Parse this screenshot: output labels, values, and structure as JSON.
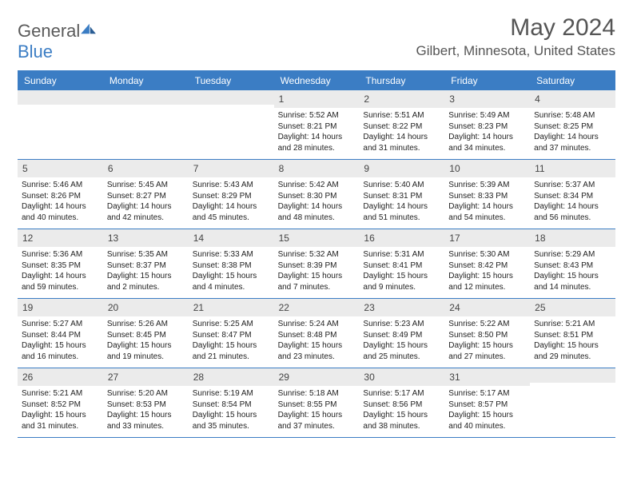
{
  "brand": {
    "word1": "General",
    "word2": "Blue"
  },
  "title": {
    "month": "May 2024",
    "location": "Gilbert, Minnesota, United States"
  },
  "colors": {
    "header_bg": "#3b7dc4",
    "daynum_bg": "#ebebeb",
    "text_main": "#222222",
    "text_muted": "#555555",
    "white": "#ffffff"
  },
  "day_names": [
    "Sunday",
    "Monday",
    "Tuesday",
    "Wednesday",
    "Thursday",
    "Friday",
    "Saturday"
  ],
  "weeks": [
    [
      {
        "n": "",
        "sr": "",
        "ss": "",
        "dl": ""
      },
      {
        "n": "",
        "sr": "",
        "ss": "",
        "dl": ""
      },
      {
        "n": "",
        "sr": "",
        "ss": "",
        "dl": ""
      },
      {
        "n": "1",
        "sr": "5:52 AM",
        "ss": "8:21 PM",
        "dl": "14 hours and 28 minutes."
      },
      {
        "n": "2",
        "sr": "5:51 AM",
        "ss": "8:22 PM",
        "dl": "14 hours and 31 minutes."
      },
      {
        "n": "3",
        "sr": "5:49 AM",
        "ss": "8:23 PM",
        "dl": "14 hours and 34 minutes."
      },
      {
        "n": "4",
        "sr": "5:48 AM",
        "ss": "8:25 PM",
        "dl": "14 hours and 37 minutes."
      }
    ],
    [
      {
        "n": "5",
        "sr": "5:46 AM",
        "ss": "8:26 PM",
        "dl": "14 hours and 40 minutes."
      },
      {
        "n": "6",
        "sr": "5:45 AM",
        "ss": "8:27 PM",
        "dl": "14 hours and 42 minutes."
      },
      {
        "n": "7",
        "sr": "5:43 AM",
        "ss": "8:29 PM",
        "dl": "14 hours and 45 minutes."
      },
      {
        "n": "8",
        "sr": "5:42 AM",
        "ss": "8:30 PM",
        "dl": "14 hours and 48 minutes."
      },
      {
        "n": "9",
        "sr": "5:40 AM",
        "ss": "8:31 PM",
        "dl": "14 hours and 51 minutes."
      },
      {
        "n": "10",
        "sr": "5:39 AM",
        "ss": "8:33 PM",
        "dl": "14 hours and 54 minutes."
      },
      {
        "n": "11",
        "sr": "5:37 AM",
        "ss": "8:34 PM",
        "dl": "14 hours and 56 minutes."
      }
    ],
    [
      {
        "n": "12",
        "sr": "5:36 AM",
        "ss": "8:35 PM",
        "dl": "14 hours and 59 minutes."
      },
      {
        "n": "13",
        "sr": "5:35 AM",
        "ss": "8:37 PM",
        "dl": "15 hours and 2 minutes."
      },
      {
        "n": "14",
        "sr": "5:33 AM",
        "ss": "8:38 PM",
        "dl": "15 hours and 4 minutes."
      },
      {
        "n": "15",
        "sr": "5:32 AM",
        "ss": "8:39 PM",
        "dl": "15 hours and 7 minutes."
      },
      {
        "n": "16",
        "sr": "5:31 AM",
        "ss": "8:41 PM",
        "dl": "15 hours and 9 minutes."
      },
      {
        "n": "17",
        "sr": "5:30 AM",
        "ss": "8:42 PM",
        "dl": "15 hours and 12 minutes."
      },
      {
        "n": "18",
        "sr": "5:29 AM",
        "ss": "8:43 PM",
        "dl": "15 hours and 14 minutes."
      }
    ],
    [
      {
        "n": "19",
        "sr": "5:27 AM",
        "ss": "8:44 PM",
        "dl": "15 hours and 16 minutes."
      },
      {
        "n": "20",
        "sr": "5:26 AM",
        "ss": "8:45 PM",
        "dl": "15 hours and 19 minutes."
      },
      {
        "n": "21",
        "sr": "5:25 AM",
        "ss": "8:47 PM",
        "dl": "15 hours and 21 minutes."
      },
      {
        "n": "22",
        "sr": "5:24 AM",
        "ss": "8:48 PM",
        "dl": "15 hours and 23 minutes."
      },
      {
        "n": "23",
        "sr": "5:23 AM",
        "ss": "8:49 PM",
        "dl": "15 hours and 25 minutes."
      },
      {
        "n": "24",
        "sr": "5:22 AM",
        "ss": "8:50 PM",
        "dl": "15 hours and 27 minutes."
      },
      {
        "n": "25",
        "sr": "5:21 AM",
        "ss": "8:51 PM",
        "dl": "15 hours and 29 minutes."
      }
    ],
    [
      {
        "n": "26",
        "sr": "5:21 AM",
        "ss": "8:52 PM",
        "dl": "15 hours and 31 minutes."
      },
      {
        "n": "27",
        "sr": "5:20 AM",
        "ss": "8:53 PM",
        "dl": "15 hours and 33 minutes."
      },
      {
        "n": "28",
        "sr": "5:19 AM",
        "ss": "8:54 PM",
        "dl": "15 hours and 35 minutes."
      },
      {
        "n": "29",
        "sr": "5:18 AM",
        "ss": "8:55 PM",
        "dl": "15 hours and 37 minutes."
      },
      {
        "n": "30",
        "sr": "5:17 AM",
        "ss": "8:56 PM",
        "dl": "15 hours and 38 minutes."
      },
      {
        "n": "31",
        "sr": "5:17 AM",
        "ss": "8:57 PM",
        "dl": "15 hours and 40 minutes."
      },
      {
        "n": "",
        "sr": "",
        "ss": "",
        "dl": ""
      }
    ]
  ],
  "labels": {
    "sunrise": "Sunrise: ",
    "sunset": "Sunset: ",
    "daylight": "Daylight: "
  }
}
